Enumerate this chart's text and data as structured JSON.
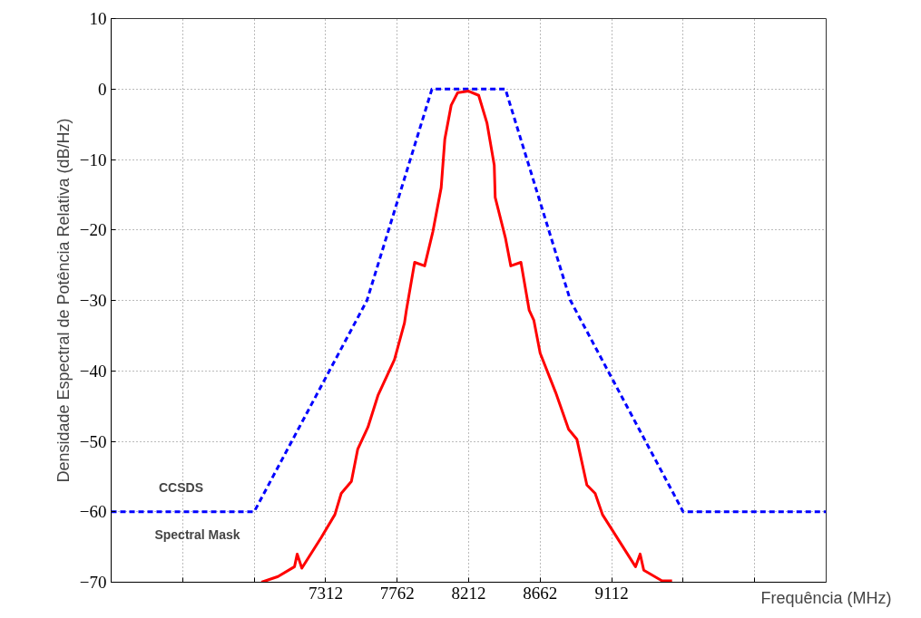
{
  "chart_data": {
    "type": "line",
    "xlabel": "Frequência (MHz)",
    "ylabel": "Densidade Espectral de Potência Relativa (dB/Hz)",
    "xlim": [
      5962,
      10462
    ],
    "ylim": [
      -70,
      10
    ],
    "xticks": [
      {
        "value": 6412,
        "label": null
      },
      {
        "value": 6862,
        "label": null
      },
      7312,
      7762,
      8212,
      8662,
      9112,
      {
        "value": 9562,
        "label": null
      },
      {
        "value": 10012,
        "label": null
      }
    ],
    "yticks": [
      {
        "value": -70,
        "label": "−70"
      },
      {
        "value": -60,
        "label": "−60"
      },
      {
        "value": -50,
        "label": "−50"
      },
      {
        "value": -40,
        "label": "−40"
      },
      {
        "value": -30,
        "label": "−30"
      },
      {
        "value": -20,
        "label": "−20"
      },
      {
        "value": -10,
        "label": "−10"
      },
      0,
      10
    ],
    "grid": true,
    "annotations": [
      "CCSDS",
      "Spectral Mask"
    ],
    "series": [
      {
        "color": "#0000ff",
        "line_style": "dashed",
        "x": [
          5962,
          6862,
          7572,
          7981,
          8443,
          8852,
          9562,
          10462
        ],
        "values": [
          -60,
          -60,
          -30,
          0,
          0,
          -30,
          -60,
          -60
        ]
      },
      {
        "color": "#ff0000",
        "line_style": "solid",
        "x": [
          6908,
          7012,
          7116,
          7133,
          7162,
          7283,
          7370,
          7410,
          7474,
          7514,
          7578,
          7641,
          7745,
          7808,
          7820,
          7872,
          7935,
          7987,
          8039,
          8062,
          8102,
          8143,
          8212,
          8275,
          8327,
          8373,
          8379,
          8443,
          8477,
          8541,
          8593,
          8622,
          8662,
          8760,
          8841,
          8893,
          8956,
          9008,
          9054,
          9158,
          9262,
          9291,
          9314,
          9429,
          9492
        ],
        "values": [
          -70,
          -69.2,
          -67.8,
          -66,
          -68,
          -63.7,
          -60.4,
          -57.4,
          -55.7,
          -51.1,
          -48,
          -43.5,
          -38.4,
          -33.2,
          -31.4,
          -24.6,
          -25.1,
          -20.2,
          -14,
          -7.1,
          -2.3,
          -0.5,
          -0.3,
          -0.9,
          -4.8,
          -10.8,
          -15.4,
          -21.1,
          -25.1,
          -24.6,
          -31.4,
          -32.8,
          -37.5,
          -43.1,
          -48.3,
          -49.7,
          -56.2,
          -57.4,
          -60.4,
          -64.1,
          -67.8,
          -66,
          -68.3,
          -69.8,
          -69.8
        ]
      }
    ]
  }
}
